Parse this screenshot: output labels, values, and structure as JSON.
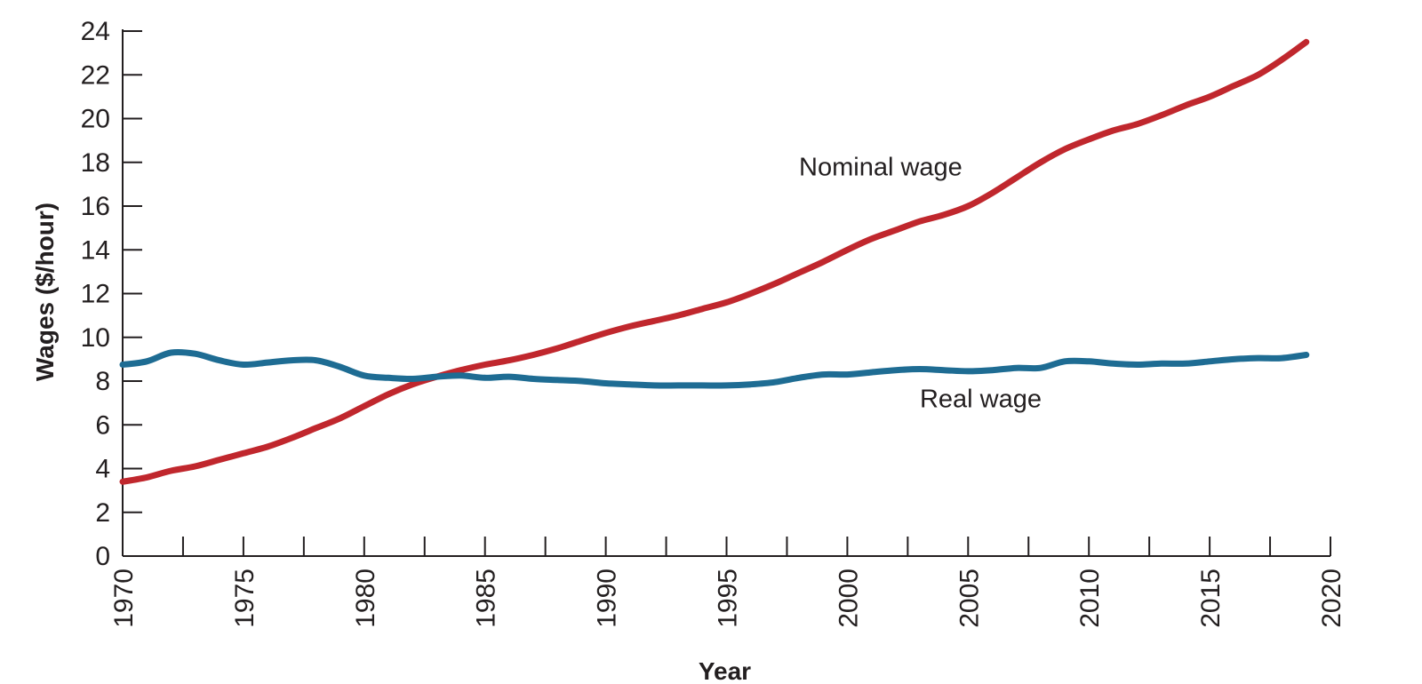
{
  "chart_data": {
    "type": "line",
    "title": "",
    "xlabel": "Year",
    "ylabel": "Wages ($/hour)",
    "xlim": [
      1970,
      2020
    ],
    "ylim": [
      0,
      24
    ],
    "x_ticks": [
      1970,
      1975,
      1980,
      1985,
      1990,
      1995,
      2000,
      2005,
      2010,
      2015,
      2020
    ],
    "y_ticks": [
      0,
      2,
      4,
      6,
      8,
      10,
      12,
      14,
      16,
      18,
      20,
      22,
      24
    ],
    "grid": false,
    "legend": "none",
    "series": [
      {
        "name": "Nominal wage",
        "color": "#c0272d",
        "label_at": [
          1998,
          17.4
        ],
        "x": [
          1970,
          1971,
          1972,
          1973,
          1974,
          1975,
          1976,
          1977,
          1978,
          1979,
          1980,
          1981,
          1982,
          1983,
          1984,
          1985,
          1986,
          1987,
          1988,
          1989,
          1990,
          1991,
          1992,
          1993,
          1994,
          1995,
          1996,
          1997,
          1998,
          1999,
          2000,
          2001,
          2002,
          2003,
          2004,
          2005,
          2006,
          2007,
          2008,
          2009,
          2010,
          2011,
          2012,
          2013,
          2014,
          2015,
          2016,
          2017,
          2018,
          2019
        ],
        "y": [
          3.4,
          3.6,
          3.9,
          4.1,
          4.4,
          4.7,
          5.0,
          5.4,
          5.85,
          6.3,
          6.85,
          7.4,
          7.85,
          8.2,
          8.5,
          8.75,
          8.95,
          9.2,
          9.5,
          9.85,
          10.2,
          10.5,
          10.75,
          11.0,
          11.3,
          11.6,
          12.0,
          12.45,
          12.95,
          13.45,
          14.0,
          14.5,
          14.9,
          15.3,
          15.6,
          16.0,
          16.6,
          17.3,
          18.0,
          18.6,
          19.05,
          19.45,
          19.75,
          20.15,
          20.6,
          21.0,
          21.5,
          22.0,
          22.7,
          23.5
        ]
      },
      {
        "name": "Real wage",
        "color": "#1e6c93",
        "label_at": [
          2003,
          6.8
        ],
        "x": [
          1970,
          1971,
          1972,
          1973,
          1974,
          1975,
          1976,
          1977,
          1978,
          1979,
          1980,
          1981,
          1982,
          1983,
          1984,
          1985,
          1986,
          1987,
          1988,
          1989,
          1990,
          1991,
          1992,
          1993,
          1994,
          1995,
          1996,
          1997,
          1998,
          1999,
          2000,
          2001,
          2002,
          2003,
          2004,
          2005,
          2006,
          2007,
          2008,
          2009,
          2010,
          2011,
          2012,
          2013,
          2014,
          2015,
          2016,
          2017,
          2018,
          2019
        ],
        "y": [
          8.75,
          8.9,
          9.3,
          9.25,
          8.95,
          8.75,
          8.85,
          8.95,
          8.95,
          8.65,
          8.25,
          8.15,
          8.1,
          8.2,
          8.25,
          8.15,
          8.2,
          8.1,
          8.05,
          8.0,
          7.9,
          7.85,
          7.8,
          7.8,
          7.8,
          7.8,
          7.85,
          7.95,
          8.15,
          8.3,
          8.3,
          8.4,
          8.5,
          8.55,
          8.5,
          8.45,
          8.5,
          8.6,
          8.6,
          8.9,
          8.9,
          8.8,
          8.75,
          8.8,
          8.8,
          8.9,
          9.0,
          9.05,
          9.05,
          9.2
        ]
      }
    ]
  }
}
